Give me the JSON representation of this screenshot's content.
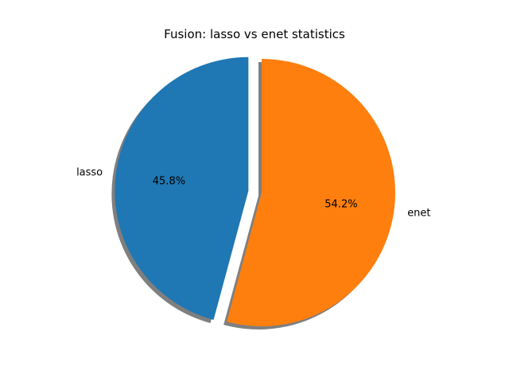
{
  "chart_data": {
    "type": "pie",
    "title": "Fusion: lasso vs enet statistics",
    "labels": [
      "lasso",
      "enet"
    ],
    "values": [
      45.8,
      54.2
    ],
    "autopct_labels": [
      "45.8%",
      "54.2%"
    ],
    "colors": [
      "#1f77b4",
      "#ff7f0e"
    ],
    "explode": [
      0.1,
      0
    ],
    "shadow": true,
    "start_angle_deg": 90,
    "direction": "counterclockwise"
  }
}
